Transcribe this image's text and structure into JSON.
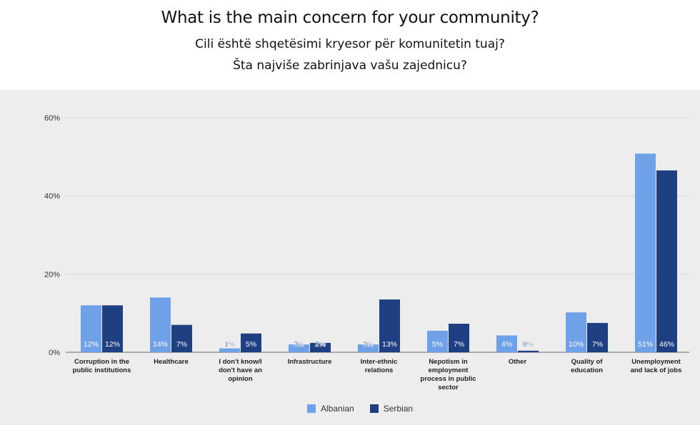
{
  "title": {
    "line1": "What is the main concern for your community?",
    "line2": "Cili është shqetësimi kryesor për komunitetin tuaj?",
    "line3": "Šta najviše zabrinjava vašu zajednicu?"
  },
  "colors": {
    "albanian": "#6fa1e8",
    "serbian": "#1f3f83",
    "background": "#ededed",
    "grid": "#d6d6d6"
  },
  "chart_data": {
    "type": "bar",
    "title": "What is the main concern for your community?",
    "categories": [
      [
        "Corruption in the",
        "public institutions"
      ],
      [
        "Healthcare"
      ],
      [
        "I don't know/I",
        "don't have an",
        "opinion"
      ],
      [
        "Infrastructure"
      ],
      [
        "Inter-ethnic",
        "relations"
      ],
      [
        "Nepotism in",
        "employment",
        "process in public",
        "sector"
      ],
      [
        "Other"
      ],
      [
        "Quality of",
        "education"
      ],
      [
        "Unemployment",
        "and lack of jobs"
      ]
    ],
    "series": [
      {
        "name": "Albanian",
        "values": [
          12,
          14,
          1,
          2,
          2,
          5.5,
          4.3,
          10.2,
          50.8
        ],
        "labels": [
          "12%",
          "14%",
          "1%",
          "2%",
          "2%",
          "5%",
          "4%",
          "10%",
          "51%"
        ]
      },
      {
        "name": "Serbian",
        "values": [
          12,
          7,
          4.8,
          2.4,
          13.5,
          7.3,
          0.4,
          7.5,
          46.5
        ],
        "labels": [
          "12%",
          "7%",
          "5%",
          "2%",
          "13%",
          "7%",
          "0%",
          "7%",
          "46%"
        ]
      }
    ],
    "yticks": [
      "0%",
      "20%",
      "40%",
      "60%"
    ],
    "ylim": [
      0,
      60
    ],
    "grid": true,
    "legend": "bottom-center"
  }
}
